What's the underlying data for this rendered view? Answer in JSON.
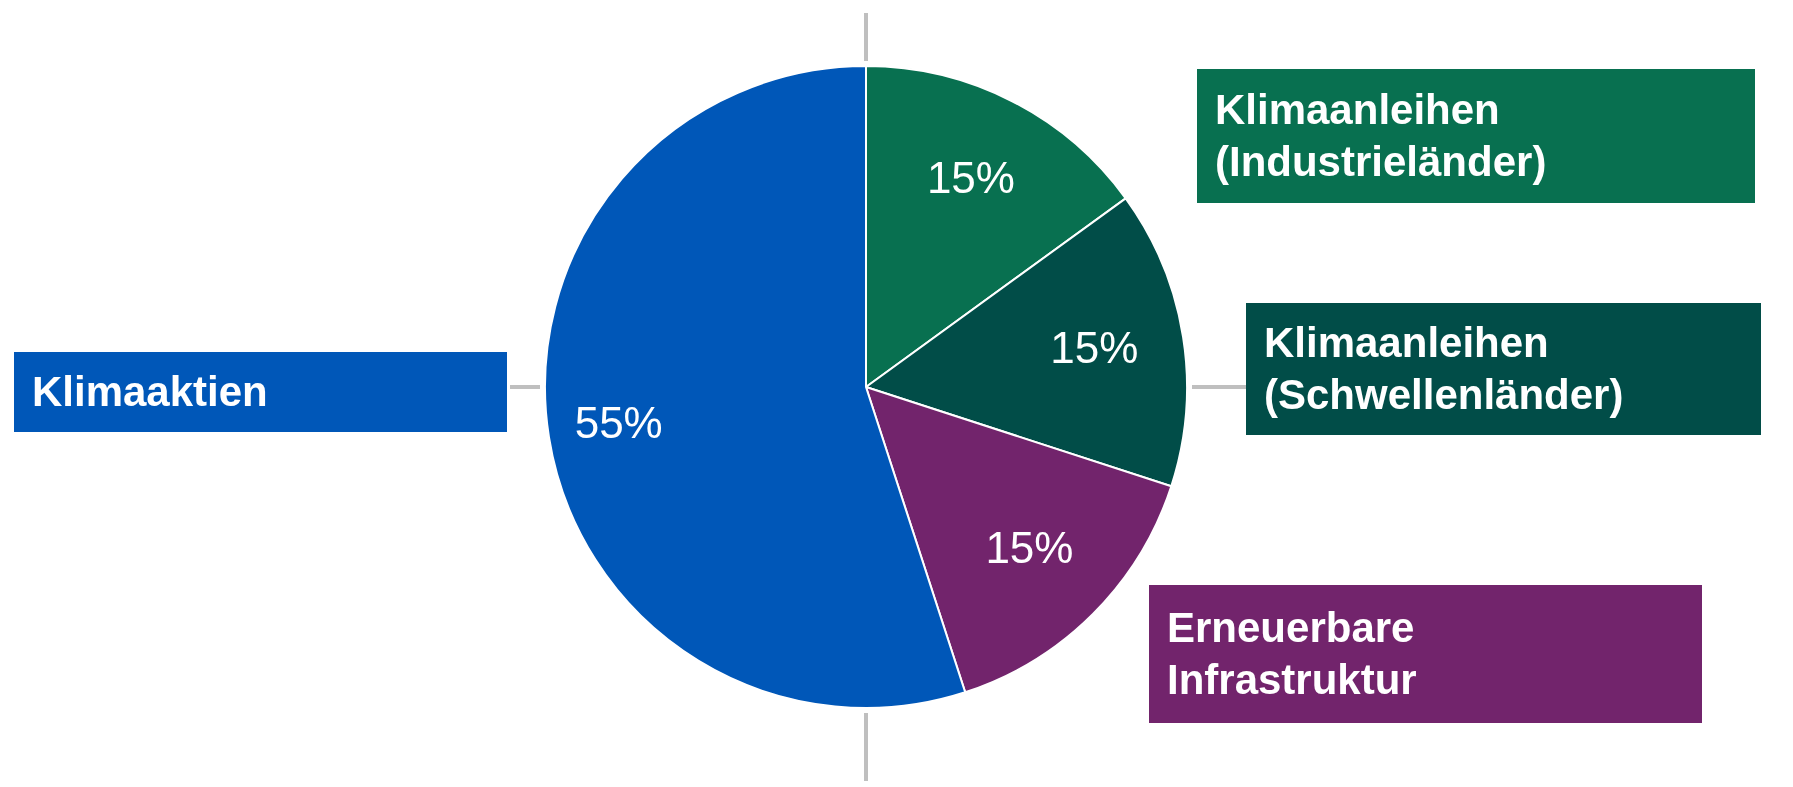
{
  "chart_data": {
    "type": "pie",
    "categories": [
      "Klimaanleihen (Industrieländer)",
      "Klimaanleihen (Schwellenländer)",
      "Erneuerbare Infrastruktur",
      "Klimaaktien"
    ],
    "values": [
      15,
      15,
      15,
      55
    ],
    "colors": [
      "#087050",
      "#014d48",
      "#72246c",
      "#0057b8"
    ],
    "value_labels": [
      "15%",
      "15%",
      "15%",
      "55%"
    ]
  }
}
